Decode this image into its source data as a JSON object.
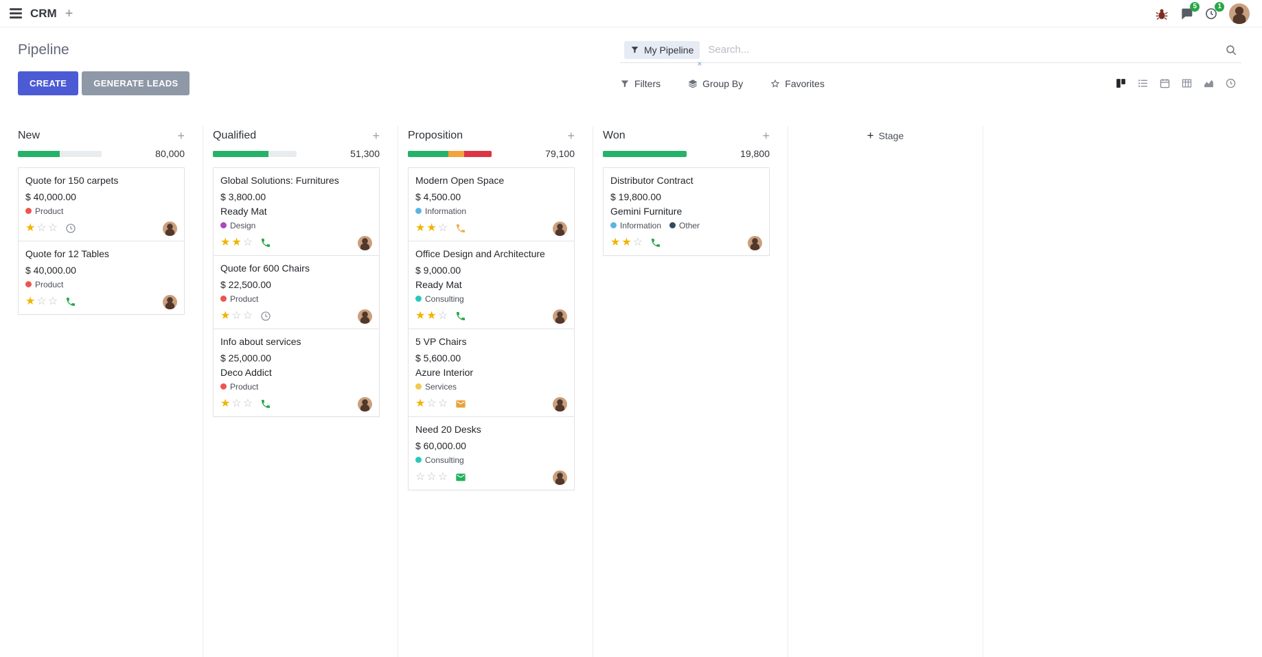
{
  "navbar": {
    "app_name": "CRM",
    "message_badge": "5",
    "activity_badge": "1"
  },
  "control_panel": {
    "title": "Pipeline",
    "create_label": "CREATE",
    "generate_leads_label": "GENERATE LEADS",
    "filters_label": "Filters",
    "group_by_label": "Group By",
    "favorites_label": "Favorites",
    "search": {
      "facet_label": "My Pipeline",
      "placeholder": "Search...",
      "remove_label": "×"
    }
  },
  "colors": {
    "accent": "#4c5bd4",
    "secondary": "#8f98a6",
    "badge_green": "#28a745",
    "star_gold": "#f0b400",
    "star_empty": "#bcc0c8"
  },
  "board": {
    "add_stage_label": "Stage",
    "columns": [
      {
        "name": "New",
        "total": "80,000",
        "progress": [
          {
            "color": "#26b268",
            "pct": 50
          },
          {
            "color": "#e9ecef",
            "pct": 50
          }
        ],
        "cards": [
          {
            "title": "Quote for 150 carpets",
            "amount": "$ 40,000.00",
            "tags": [
              {
                "label": "Product",
                "color": "#ef5350"
              }
            ],
            "stars": 1,
            "activity": {
              "icon": "clock-icon",
              "color": "#8f959d"
            }
          },
          {
            "title": "Quote for 12 Tables",
            "amount": "$ 40,000.00",
            "tags": [
              {
                "label": "Product",
                "color": "#ef5350"
              }
            ],
            "stars": 1,
            "activity": {
              "icon": "phone-icon",
              "color": "#28a745"
            }
          }
        ]
      },
      {
        "name": "Qualified",
        "total": "51,300",
        "progress": [
          {
            "color": "#26b268",
            "pct": 66
          },
          {
            "color": "#e9ecef",
            "pct": 34
          }
        ],
        "cards": [
          {
            "title": "Global Solutions: Furnitures",
            "amount": "$ 3,800.00",
            "partner": "Ready Mat",
            "tags": [
              {
                "label": "Design",
                "color": "#ab47bc"
              }
            ],
            "stars": 2,
            "activity": {
              "icon": "phone-icon",
              "color": "#28a745"
            }
          },
          {
            "title": "Quote for 600 Chairs",
            "amount": "$ 22,500.00",
            "tags": [
              {
                "label": "Product",
                "color": "#ef5350"
              }
            ],
            "stars": 1,
            "activity": {
              "icon": "clock-icon",
              "color": "#8f959d"
            }
          },
          {
            "title": "Info about services",
            "amount": "$ 25,000.00",
            "partner": "Deco Addict",
            "tags": [
              {
                "label": "Product",
                "color": "#ef5350"
              }
            ],
            "stars": 1,
            "activity": {
              "icon": "phone-icon",
              "color": "#28a745"
            }
          }
        ]
      },
      {
        "name": "Proposition",
        "total": "79,100",
        "progress": [
          {
            "color": "#26b268",
            "pct": 48
          },
          {
            "color": "#f2a33c",
            "pct": 19
          },
          {
            "color": "#dc3545",
            "pct": 33
          }
        ],
        "cards": [
          {
            "title": "Modern Open Space",
            "amount": "$ 4,500.00",
            "tags": [
              {
                "label": "Information",
                "color": "#5cb3e6"
              }
            ],
            "stars": 2,
            "activity": {
              "icon": "phone-icon",
              "color": "#f0ad4e"
            }
          },
          {
            "title": "Office Design and Architecture",
            "amount": "$ 9,000.00",
            "partner": "Ready Mat",
            "tags": [
              {
                "label": "Consulting",
                "color": "#2bc8ba"
              }
            ],
            "stars": 2,
            "activity": {
              "icon": "phone-icon",
              "color": "#28a745"
            }
          },
          {
            "title": "5 VP Chairs",
            "amount": "$ 5,600.00",
            "partner": "Azure Interior",
            "tags": [
              {
                "label": "Services",
                "color": "#f2c94c"
              }
            ],
            "stars": 1,
            "activity": {
              "icon": "mail-icon",
              "color": "#e8a33d"
            }
          },
          {
            "title": "Need 20 Desks",
            "amount": "$ 60,000.00",
            "tags": [
              {
                "label": "Consulting",
                "color": "#2bc8ba"
              }
            ],
            "stars": 0,
            "activity": {
              "icon": "mail-icon",
              "color": "#21b15c"
            }
          }
        ]
      },
      {
        "name": "Won",
        "total": "19,800",
        "progress": [
          {
            "color": "#26b268",
            "pct": 100
          }
        ],
        "cards": [
          {
            "title": "Distributor Contract",
            "amount": "$ 19,800.00",
            "partner": "Gemini Furniture",
            "tags": [
              {
                "label": "Information",
                "color": "#5cb3e6"
              },
              {
                "label": "Other",
                "color": "#34495e"
              }
            ],
            "stars": 2,
            "activity": {
              "icon": "phone-icon",
              "color": "#28a745"
            }
          }
        ]
      }
    ]
  }
}
